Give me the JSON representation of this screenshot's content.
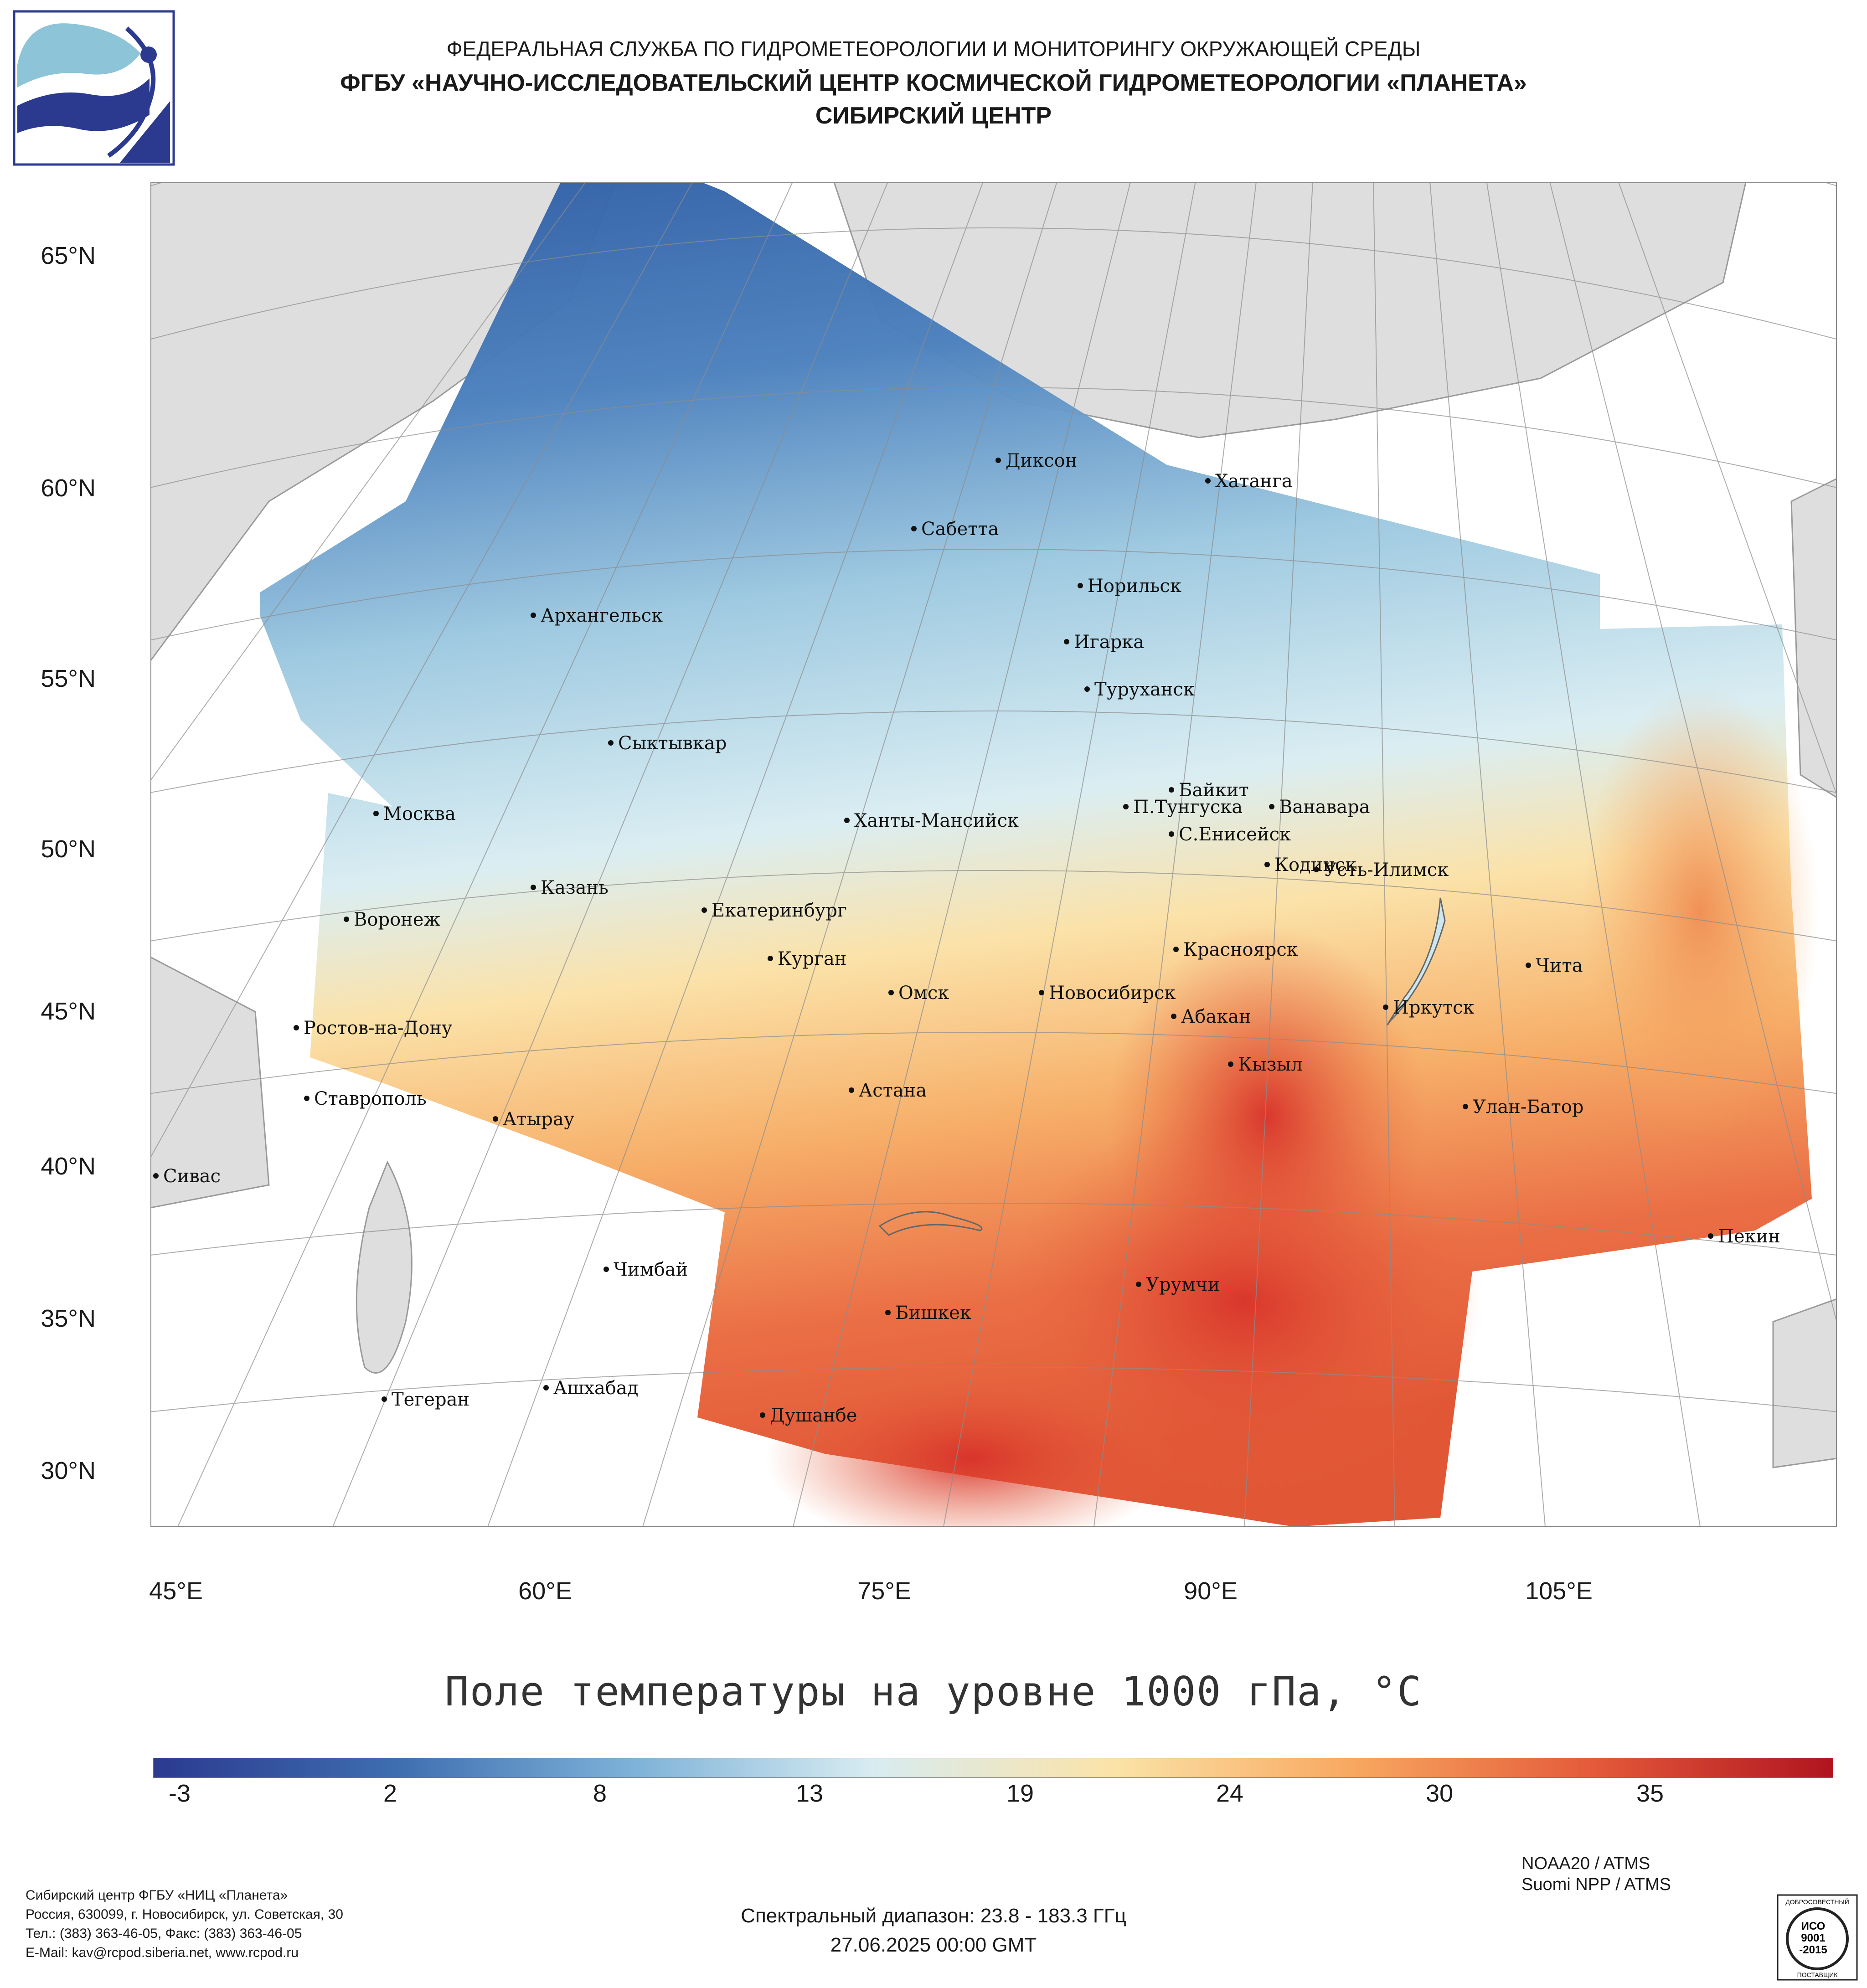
{
  "header": {
    "line1": "ФЕДЕРАЛЬНАЯ СЛУЖБА ПО ГИДРОМЕТЕОРОЛОГИИ И МОНИТОРИНГУ ОКРУЖАЮЩЕЙ СРЕДЫ",
    "line2": "ФГБУ «НАУЧНО-ИССЛЕДОВАТЕЛЬСКИЙ ЦЕНТР КОСМИЧЕСКОЙ ГИДРОМЕТЕОРОЛОГИИ «ПЛАНЕТА»",
    "line3": "СИБИРСКИЙ ЦЕНТР"
  },
  "map": {
    "latitude_labels": [
      "65°N",
      "60°N",
      "55°N",
      "50°N",
      "45°N",
      "40°N",
      "35°N",
      "30°N"
    ],
    "longitude_labels": [
      "45°E",
      "60°E",
      "75°E",
      "90°E",
      "105°E"
    ],
    "cities": [
      "Диксон",
      "Хатанга",
      "Сабетта",
      "Норильск",
      "Архангельск",
      "Игарка",
      "Туруханск",
      "Сыктывкар",
      "Байкит",
      "П.Тунгуска",
      "Ванавара",
      "Москва",
      "Ханты-Мансийск",
      "С.Енисейск",
      "Кодинск",
      "Усть-Илимск",
      "Казань",
      "Екатеринбург",
      "Воронеж",
      "Красноярск",
      "Курган",
      "Чита",
      "Омск",
      "Новосибирск",
      "Иркутск",
      "Ростов-на-Дону",
      "Абакан",
      "Кызыл",
      "Ставрополь",
      "Астана",
      "Улан-Батор",
      "Атырау",
      "Сивас",
      "Пекин",
      "Чимбай",
      "Урумчи",
      "Бишкек",
      "Ашхабад",
      "Тегеран",
      "Душанбе"
    ],
    "colors": {
      "land": "#dedede",
      "water": "#ffffff",
      "border": "#9a9a9a",
      "graticule": "#8c8c8c"
    }
  },
  "title": "Поле температуры на уровне 1000 гПа, °С",
  "colorbar": {
    "ticks": [
      "-3",
      "2",
      "8",
      "13",
      "19",
      "24",
      "30",
      "35"
    ],
    "colors": [
      "#2b3a8f",
      "#3e6db0",
      "#7eb2d8",
      "#d8ecf1",
      "#fbe3a8",
      "#f8a860",
      "#e45a3a",
      "#b0141f"
    ]
  },
  "footer": {
    "left": [
      "Сибирский центр ФГБУ «НИЦ «Планета»",
      "Россия, 630099, г. Новосибирск, ул. Советская, 30",
      "Тел.: (383) 363-46-05, Факс: (383) 363-46-05",
      "E-Mail: kav@rcpod.siberia.net, www.rcpod.ru"
    ],
    "center": [
      "Спектральный диапазон: 23.8 - 183.3 ГГц",
      "27.06.2025 00:00 GMT"
    ],
    "right": [
      "NOAA20 / ATMS",
      "Suomi NPP / ATMS"
    ],
    "seal": [
      "ДОБРОСОВЕСТНЫЙ",
      "ИСО",
      "9001",
      "-2015",
      "ПОСТАВЩИК"
    ]
  }
}
